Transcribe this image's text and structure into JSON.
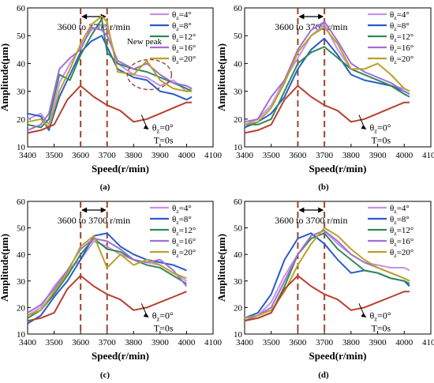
{
  "figure": {
    "colors": {
      "theta4": "#c792e8",
      "theta8": "#2a5cc9",
      "theta12": "#2e8b57",
      "theta16": "#9f6fd6",
      "theta20": "#b8a22a",
      "theta0": "#b84030",
      "dash": "#a0442a",
      "circle": "#8a4a3a"
    }
  },
  "chart_data": [
    {
      "type": "line",
      "label": "(a)",
      "xlabel": "Speed(r/min)",
      "ylabel": "Amplitude(μm)",
      "xlim": [
        3400,
        4100
      ],
      "ylim": [
        10,
        60
      ],
      "xticks": [
        "3400",
        "3500",
        "3600",
        "3700",
        "3800",
        "3900",
        "4000",
        "4100"
      ],
      "yticks": [
        "10",
        "20",
        "30",
        "40",
        "50",
        "60"
      ],
      "range_label": "3600 to 3700 r/min",
      "range": [
        3600,
        3700
      ],
      "annotations": [
        "New peak"
      ],
      "baseline": {
        "name": "θz=0°",
        "sub": "T=0s",
        "x": [
          3400,
          3450,
          3500,
          3550,
          3600,
          3650,
          3700,
          3750,
          3800,
          3850,
          3900,
          3950,
          4000,
          4020
        ],
        "y": [
          15,
          16,
          18,
          27,
          32,
          28,
          25,
          23,
          19,
          20,
          22,
          24,
          26,
          26
        ]
      },
      "series": [
        {
          "name": "θz=4°",
          "x": [
            3400,
            3450,
            3480,
            3520,
            3560,
            3600,
            3640,
            3680,
            3700,
            3740,
            3800,
            3850,
            3900,
            3950,
            4000,
            4020
          ],
          "y": [
            20,
            22,
            18,
            33,
            40,
            46,
            52,
            54,
            53,
            40,
            36,
            35,
            32,
            34,
            30,
            31
          ]
        },
        {
          "name": "θz=8°",
          "x": [
            3400,
            3450,
            3480,
            3520,
            3560,
            3600,
            3640,
            3680,
            3700,
            3740,
            3800,
            3850,
            3900,
            3950,
            4000,
            4020
          ],
          "y": [
            22,
            21,
            16,
            28,
            36,
            44,
            48,
            50,
            46,
            38,
            35,
            34,
            30,
            29,
            27,
            28
          ]
        },
        {
          "name": "θz=12°",
          "x": [
            3400,
            3450,
            3480,
            3520,
            3560,
            3600,
            3640,
            3680,
            3700,
            3740,
            3800,
            3850,
            3900,
            3950,
            4000,
            4020
          ],
          "y": [
            18,
            17,
            20,
            36,
            34,
            43,
            50,
            56,
            44,
            40,
            38,
            37,
            35,
            33,
            31,
            30
          ]
        },
        {
          "name": "θz=16°",
          "x": [
            3400,
            3450,
            3480,
            3520,
            3560,
            3600,
            3640,
            3680,
            3700,
            3740,
            3800,
            3850,
            3900,
            3950,
            4000,
            4020
          ],
          "y": [
            16,
            18,
            22,
            38,
            42,
            45,
            53,
            52,
            50,
            41,
            38,
            40,
            36,
            33,
            32,
            31
          ]
        },
        {
          "name": "θz=20°",
          "x": [
            3400,
            3450,
            3480,
            3520,
            3560,
            3600,
            3640,
            3680,
            3700,
            3740,
            3800,
            3850,
            3900,
            3950,
            4000,
            4020
          ],
          "y": [
            19,
            20,
            17,
            30,
            38,
            47,
            54,
            57,
            55,
            37,
            36,
            41,
            34,
            31,
            30,
            30
          ]
        }
      ]
    },
    {
      "type": "line",
      "label": "(b)",
      "xlabel": "Speed(r/min)",
      "ylabel": "Amplitude(μm)",
      "xlim": [
        3400,
        4100
      ],
      "ylim": [
        10,
        60
      ],
      "xticks": [
        "3400",
        "3500",
        "3600",
        "3700",
        "3800",
        "3900",
        "4000",
        "4100"
      ],
      "yticks": [
        "10",
        "20",
        "30",
        "40",
        "50",
        "60"
      ],
      "range_label": "3600 to 3700 r/min",
      "range": [
        3600,
        3700
      ],
      "annotations": [],
      "baseline": {
        "name": "θz=0°",
        "sub": "T=0s",
        "x": [
          3400,
          3450,
          3500,
          3550,
          3600,
          3650,
          3700,
          3750,
          3800,
          3850,
          3900,
          3950,
          4000,
          4020
        ],
        "y": [
          15,
          16,
          18,
          27,
          32,
          28,
          25,
          23,
          19,
          20,
          22,
          24,
          26,
          26
        ]
      },
      "series": [
        {
          "name": "θz=4°",
          "x": [
            3400,
            3450,
            3500,
            3550,
            3600,
            3650,
            3700,
            3750,
            3800,
            3850,
            3900,
            3950,
            4000,
            4020
          ],
          "y": [
            18,
            20,
            25,
            34,
            42,
            50,
            54,
            45,
            38,
            36,
            34,
            32,
            31,
            30
          ]
        },
        {
          "name": "θz=8°",
          "x": [
            3400,
            3450,
            3500,
            3550,
            3600,
            3650,
            3700,
            3750,
            3800,
            3850,
            3900,
            3950,
            4000,
            4020
          ],
          "y": [
            17,
            19,
            22,
            28,
            38,
            45,
            49,
            43,
            36,
            34,
            33,
            32,
            30,
            29
          ]
        },
        {
          "name": "θz=12°",
          "x": [
            3400,
            3450,
            3500,
            3550,
            3600,
            3650,
            3700,
            3750,
            3800,
            3850,
            3900,
            3950,
            4000,
            4020
          ],
          "y": [
            18,
            18,
            20,
            30,
            40,
            44,
            46,
            42,
            38,
            36,
            34,
            32,
            29,
            28
          ]
        },
        {
          "name": "θz=16°",
          "x": [
            3400,
            3450,
            3500,
            3550,
            3600,
            3650,
            3700,
            3750,
            3800,
            3850,
            3900,
            3950,
            4000,
            4020
          ],
          "y": [
            19,
            20,
            28,
            34,
            45,
            52,
            55,
            48,
            40,
            37,
            35,
            33,
            30,
            29
          ]
        },
        {
          "name": "θz=20°",
          "x": [
            3400,
            3450,
            3500,
            3550,
            3600,
            3650,
            3700,
            3750,
            3800,
            3850,
            3900,
            3950,
            4000,
            4020
          ],
          "y": [
            18,
            19,
            24,
            33,
            44,
            50,
            53,
            47,
            38,
            38,
            40,
            36,
            31,
            30
          ]
        }
      ]
    },
    {
      "type": "line",
      "label": "(c)",
      "xlabel": "Speed(r/min)",
      "ylabel": "Amplitude(μm)",
      "xlim": [
        3400,
        4100
      ],
      "ylim": [
        10,
        60
      ],
      "xticks": [
        "3400",
        "3500",
        "3600",
        "3700",
        "3800",
        "3900",
        "4000",
        "4100"
      ],
      "yticks": [
        "10",
        "20",
        "30",
        "40",
        "50",
        "60"
      ],
      "range_label": "3600 to 3700 r/min",
      "range": [
        3600,
        3700
      ],
      "annotations": [],
      "baseline": {
        "name": "θz=0°",
        "sub": "T=0s",
        "x": [
          3400,
          3450,
          3500,
          3550,
          3600,
          3650,
          3700,
          3750,
          3800,
          3850,
          3900,
          3950,
          4000
        ],
        "y": [
          15,
          16,
          18,
          27,
          32,
          28,
          25,
          23,
          19,
          20,
          22,
          24,
          26
        ]
      },
      "series": [
        {
          "name": "θz=4°",
          "x": [
            3400,
            3450,
            3500,
            3550,
            3600,
            3650,
            3700,
            3750,
            3800,
            3850,
            3900,
            3950,
            4000
          ],
          "y": [
            17,
            20,
            28,
            34,
            38,
            45,
            43,
            40,
            38,
            37,
            36,
            33,
            30
          ]
        },
        {
          "name": "θz=8°",
          "x": [
            3400,
            3450,
            3500,
            3550,
            3600,
            3650,
            3700,
            3750,
            3800,
            3850,
            3900,
            3950,
            4000
          ],
          "y": [
            14,
            17,
            24,
            30,
            38,
            47,
            48,
            43,
            40,
            38,
            37,
            36,
            34
          ]
        },
        {
          "name": "θz=12°",
          "x": [
            3400,
            3450,
            3500,
            3550,
            3600,
            3650,
            3700,
            3750,
            3800,
            3850,
            3900,
            3950,
            4000
          ],
          "y": [
            16,
            19,
            25,
            32,
            40,
            46,
            42,
            41,
            38,
            36,
            35,
            32,
            29
          ]
        },
        {
          "name": "θz=16°",
          "x": [
            3400,
            3450,
            3500,
            3550,
            3600,
            3650,
            3700,
            3750,
            3800,
            3850,
            3900,
            3950,
            4000
          ],
          "y": [
            18,
            21,
            27,
            34,
            42,
            46,
            45,
            42,
            38,
            37,
            38,
            34,
            28
          ]
        },
        {
          "name": "θz=20°",
          "x": [
            3400,
            3450,
            3500,
            3550,
            3600,
            3650,
            3700,
            3750,
            3800,
            3850,
            3900,
            3950,
            4000
          ],
          "y": [
            17,
            19,
            26,
            33,
            43,
            47,
            35,
            40,
            36,
            38,
            36,
            33,
            31
          ]
        }
      ]
    },
    {
      "type": "line",
      "label": "(d)",
      "xlabel": "Speed(r/min)",
      "ylabel": "Amplitude(μm)",
      "xlim": [
        3400,
        4100
      ],
      "ylim": [
        10,
        60
      ],
      "xticks": [
        "3400",
        "3500",
        "3600",
        "3700",
        "3800",
        "3900",
        "4000",
        "4100"
      ],
      "yticks": [
        "10",
        "20",
        "30",
        "40",
        "50",
        "60"
      ],
      "range_label": "3600 to 3700 r/min",
      "range": [
        3600,
        3700
      ],
      "annotations": [],
      "baseline": {
        "name": "θz=0°",
        "sub": "T=0s",
        "x": [
          3400,
          3450,
          3500,
          3550,
          3600,
          3650,
          3700,
          3750,
          3800,
          3850,
          3900,
          3950,
          4000,
          4020
        ],
        "y": [
          15,
          16,
          18,
          27,
          32,
          28,
          25,
          23,
          19,
          20,
          22,
          24,
          26,
          26
        ]
      },
      "series": [
        {
          "name": "θz=4°",
          "x": [
            3400,
            3450,
            3500,
            3550,
            3600,
            3650,
            3700,
            3750,
            3800,
            3850,
            3900,
            3950,
            4000,
            4020
          ],
          "y": [
            16,
            17,
            22,
            32,
            40,
            47,
            49,
            44,
            40,
            37,
            36,
            35,
            35,
            34
          ]
        },
        {
          "name": "θz=8°",
          "x": [
            3400,
            3450,
            3500,
            3550,
            3600,
            3650,
            3700,
            3750,
            3800,
            3850,
            3900,
            3950,
            4000,
            4020
          ],
          "y": [
            16,
            18,
            25,
            38,
            46,
            48,
            44,
            38,
            33,
            34,
            33,
            31,
            30,
            28
          ]
        },
        {
          "name": "θz=12°",
          "x": [
            3400,
            3450,
            3500,
            3550,
            3600,
            3650,
            3700,
            3750,
            3800,
            3850,
            3900,
            3950,
            4000,
            4020
          ],
          "y": [
            15,
            16,
            18,
            28,
            40,
            46,
            48,
            42,
            38,
            34,
            33,
            31,
            30,
            29
          ]
        },
        {
          "name": "θz=16°",
          "x": [
            3400,
            3450,
            3500,
            3550,
            3600,
            3650,
            3700,
            3750,
            3800,
            3850,
            3900,
            3950,
            4000,
            4020
          ],
          "y": [
            15,
            17,
            20,
            30,
            40,
            47,
            49,
            45,
            40,
            37,
            35,
            33,
            31,
            30
          ]
        },
        {
          "name": "θz=20°",
          "x": [
            3400,
            3450,
            3500,
            3550,
            3600,
            3650,
            3700,
            3750,
            3800,
            3850,
            3900,
            3950,
            4000,
            4020
          ],
          "y": [
            16,
            17,
            19,
            26,
            36,
            44,
            50,
            47,
            42,
            38,
            35,
            33,
            31,
            30
          ]
        }
      ]
    }
  ]
}
